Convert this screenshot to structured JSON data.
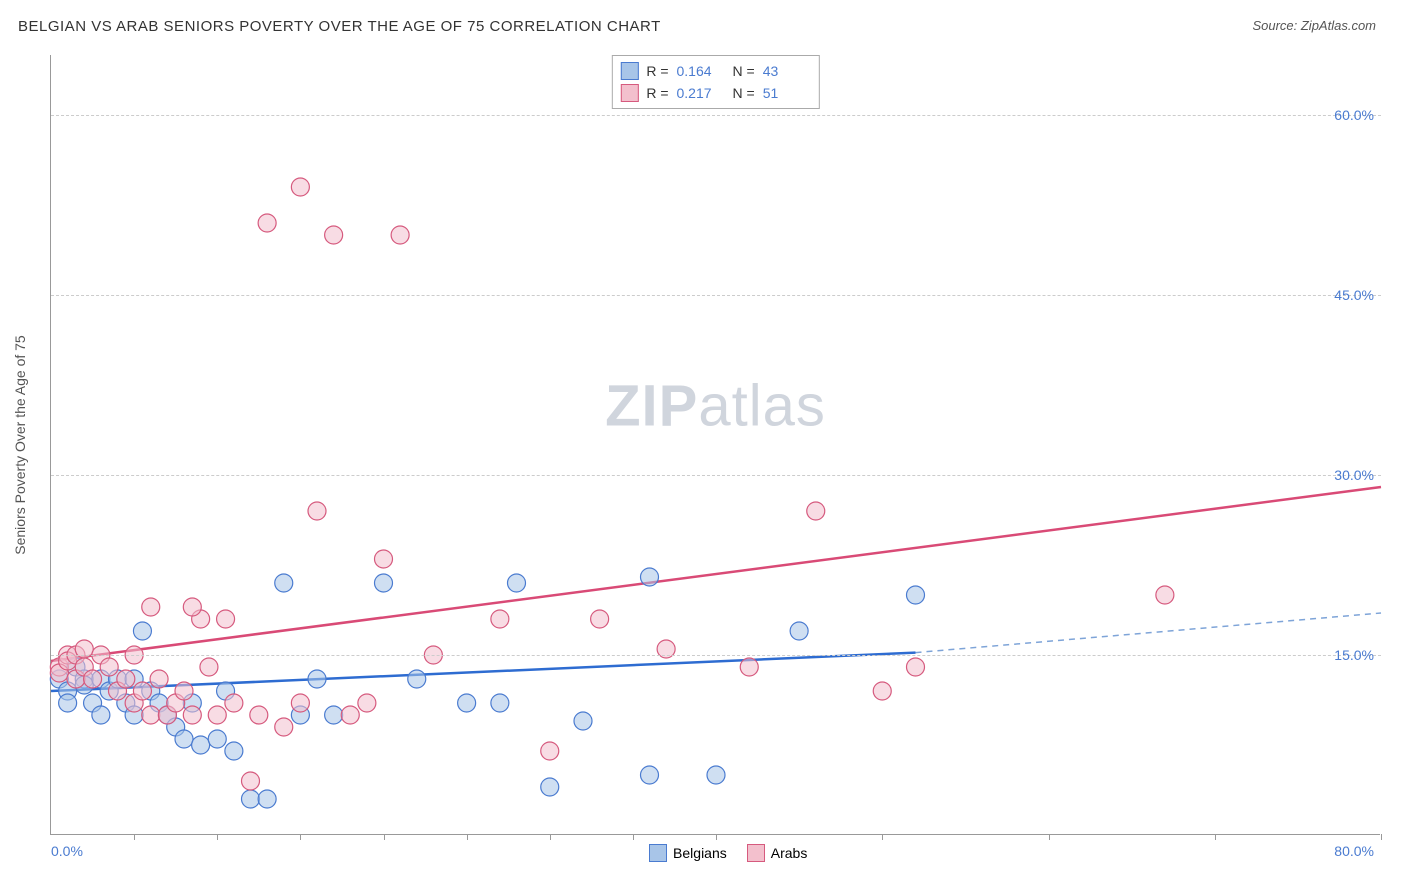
{
  "title": "BELGIAN VS ARAB SENIORS POVERTY OVER THE AGE OF 75 CORRELATION CHART",
  "source": "Source: ZipAtlas.com",
  "y_axis_title": "Seniors Poverty Over the Age of 75",
  "watermark_bold": "ZIP",
  "watermark_light": "atlas",
  "chart": {
    "type": "scatter",
    "xlim": [
      0,
      80
    ],
    "ylim": [
      0,
      65
    ],
    "x_label_start": "0.0%",
    "x_label_end": "80.0%",
    "x_tick_positions": [
      5,
      10,
      15,
      20,
      25,
      30,
      35,
      40,
      50,
      60,
      70,
      80
    ],
    "y_ticks": [
      {
        "v": 15,
        "label": "15.0%"
      },
      {
        "v": 30,
        "label": "30.0%"
      },
      {
        "v": 45,
        "label": "45.0%"
      },
      {
        "v": 60,
        "label": "60.0%"
      }
    ],
    "grid_color": "#cccccc",
    "background": "#ffffff",
    "marker_radius": 9,
    "marker_stroke_width": 1.2,
    "series": [
      {
        "name": "Belgians",
        "fill": "#a8c5e8",
        "stroke": "#4a7bd0",
        "fill_opacity": 0.55,
        "R": "0.164",
        "N": "43",
        "trend": {
          "x1": 0,
          "y1": 12,
          "x2": 52,
          "y2": 15.2,
          "stroke": "#2e6cd1",
          "width": 2.5
        },
        "trend_ext": {
          "x1": 52,
          "y1": 15.2,
          "x2": 80,
          "y2": 18.5,
          "stroke": "#7ea4d8",
          "width": 1.5,
          "dash": "6,5"
        },
        "points": [
          [
            0.5,
            13
          ],
          [
            1,
            12
          ],
          [
            1,
            11
          ],
          [
            1.5,
            14
          ],
          [
            2,
            13
          ],
          [
            2,
            12.5
          ],
          [
            2.5,
            11
          ],
          [
            3,
            13
          ],
          [
            3,
            10
          ],
          [
            3.5,
            12
          ],
          [
            4,
            13
          ],
          [
            4.5,
            11
          ],
          [
            5,
            10
          ],
          [
            5,
            13
          ],
          [
            5.5,
            17
          ],
          [
            6,
            12
          ],
          [
            6.5,
            11
          ],
          [
            7,
            10
          ],
          [
            7.5,
            9
          ],
          [
            8,
            8
          ],
          [
            8.5,
            11
          ],
          [
            9,
            7.5
          ],
          [
            10,
            8
          ],
          [
            10.5,
            12
          ],
          [
            11,
            7
          ],
          [
            12,
            3
          ],
          [
            13,
            3
          ],
          [
            14,
            21
          ],
          [
            15,
            10
          ],
          [
            16,
            13
          ],
          [
            17,
            10
          ],
          [
            20,
            21
          ],
          [
            22,
            13
          ],
          [
            25,
            11
          ],
          [
            27,
            11
          ],
          [
            28,
            21
          ],
          [
            30,
            4
          ],
          [
            32,
            9.5
          ],
          [
            36,
            21.5
          ],
          [
            36,
            5
          ],
          [
            40,
            5
          ],
          [
            45,
            17
          ],
          [
            52,
            20
          ]
        ]
      },
      {
        "name": "Arabs",
        "fill": "#f3c0cd",
        "stroke": "#d65a7e",
        "fill_opacity": 0.55,
        "R": "0.217",
        "N": "51",
        "trend": {
          "x1": 0,
          "y1": 14.5,
          "x2": 80,
          "y2": 29,
          "stroke": "#d94a76",
          "width": 2.5
        },
        "points": [
          [
            0.5,
            14
          ],
          [
            0.5,
            13.5
          ],
          [
            1,
            15
          ],
          [
            1,
            14.5
          ],
          [
            1.5,
            13
          ],
          [
            1.5,
            15
          ],
          [
            2,
            14
          ],
          [
            2,
            15.5
          ],
          [
            2.5,
            13
          ],
          [
            3,
            15
          ],
          [
            3.5,
            14
          ],
          [
            4,
            12
          ],
          [
            4.5,
            13
          ],
          [
            5,
            11
          ],
          [
            5,
            15
          ],
          [
            5.5,
            12
          ],
          [
            6,
            10
          ],
          [
            6.5,
            13
          ],
          [
            7,
            10
          ],
          [
            7.5,
            11
          ],
          [
            8,
            12
          ],
          [
            8.5,
            10
          ],
          [
            9,
            18
          ],
          [
            9.5,
            14
          ],
          [
            10,
            10
          ],
          [
            10.5,
            18
          ],
          [
            11,
            11
          ],
          [
            12,
            4.5
          ],
          [
            12.5,
            10
          ],
          [
            13,
            51
          ],
          [
            14,
            9
          ],
          [
            15,
            11
          ],
          [
            15,
            54
          ],
          [
            16,
            27
          ],
          [
            17,
            50
          ],
          [
            18,
            10
          ],
          [
            19,
            11
          ],
          [
            20,
            23
          ],
          [
            21,
            50
          ],
          [
            23,
            15
          ],
          [
            27,
            18
          ],
          [
            30,
            7
          ],
          [
            33,
            18
          ],
          [
            37,
            15.5
          ],
          [
            42,
            14
          ],
          [
            46,
            27
          ],
          [
            50,
            12
          ],
          [
            52,
            14
          ],
          [
            67,
            20
          ],
          [
            6,
            19
          ],
          [
            8.5,
            19
          ]
        ]
      }
    ],
    "legend": [
      {
        "name": "Belgians",
        "swatch": "blue"
      },
      {
        "name": "Arabs",
        "swatch": "pink"
      }
    ]
  }
}
